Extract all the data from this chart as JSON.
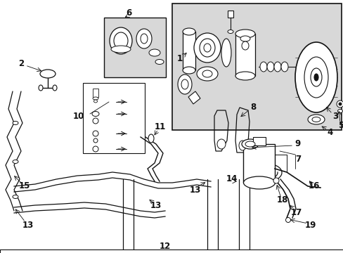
{
  "bg_color": "#ffffff",
  "fig_width": 4.89,
  "fig_height": 3.6,
  "dpi": 100,
  "inset_bg": "#d8d8d8",
  "line_color": "#111111",
  "font_size": 8.5
}
